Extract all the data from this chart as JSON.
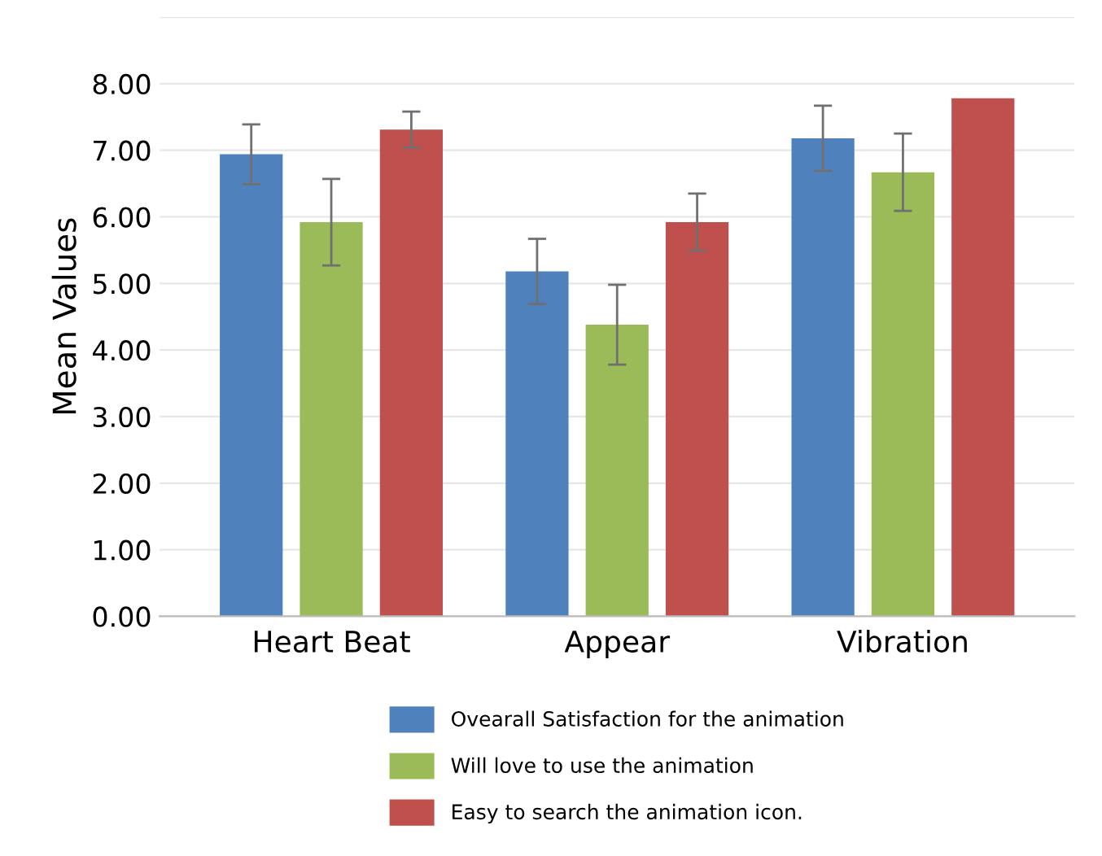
{
  "chart_data": {
    "type": "bar",
    "ylabel": "Mean Values",
    "categories": [
      "Heart Beat",
      "Appear",
      "Vibration"
    ],
    "series": [
      {
        "name": "Ovearall Satisfaction for the animation",
        "color": "#4f81bd",
        "values": [
          6.94,
          5.18,
          7.18
        ],
        "errors": [
          0.45,
          0.49,
          0.49
        ]
      },
      {
        "name": "Will love to use the animation",
        "color": "#9bbb59",
        "values": [
          5.92,
          4.38,
          6.67
        ],
        "errors": [
          0.65,
          0.6,
          0.58
        ]
      },
      {
        "name": "Easy to search the animation icon.",
        "color": "#c0504d",
        "values": [
          7.31,
          5.92,
          7.78
        ],
        "errors": [
          0.27,
          0.43,
          null
        ]
      }
    ],
    "ylim": [
      0,
      9
    ],
    "yticks": [
      {
        "value": 0,
        "label": "0.00"
      },
      {
        "value": 1,
        "label": "1.00"
      },
      {
        "value": 2,
        "label": "2.00"
      },
      {
        "value": 3,
        "label": "3.00"
      },
      {
        "value": 4,
        "label": "4.00"
      },
      {
        "value": 5,
        "label": "5.00"
      },
      {
        "value": 6,
        "label": "6.00"
      },
      {
        "value": 7,
        "label": "7.00"
      },
      {
        "value": 8,
        "label": "8.00"
      },
      {
        "value": 9,
        "label": null
      }
    ],
    "grid": "y",
    "legend": "bottom"
  }
}
